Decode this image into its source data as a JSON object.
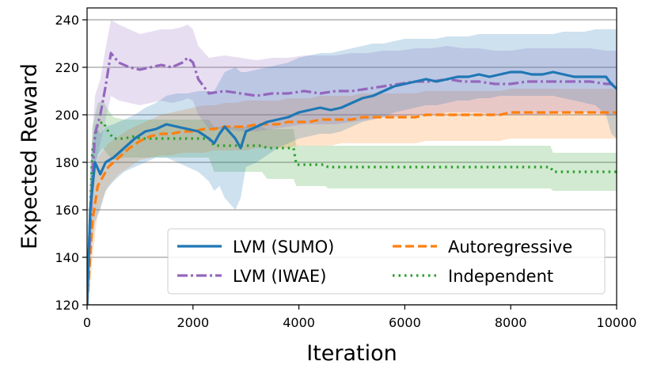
{
  "chart_data": {
    "type": "line",
    "title": "",
    "xlabel": "Iteration",
    "ylabel": "Expected Reward",
    "xlim": [
      0,
      10000
    ],
    "ylim": [
      120,
      245
    ],
    "xticks": [
      0,
      2000,
      4000,
      6000,
      8000,
      10000
    ],
    "yticks": [
      120,
      140,
      160,
      180,
      200,
      220,
      240
    ],
    "grid": "horizontal",
    "legend_position": "lower-right",
    "series": [
      {
        "name": "LVM (SUMO)",
        "color": "#1f77b4",
        "style": "solid",
        "x": [
          0,
          60,
          150,
          250,
          350,
          500,
          700,
          900,
          1100,
          1300,
          1500,
          1700,
          1900,
          2100,
          2300,
          2400,
          2500,
          2600,
          2800,
          2900,
          3000,
          3200,
          3400,
          3600,
          3800,
          4000,
          4200,
          4400,
          4600,
          4800,
          5000,
          5200,
          5400,
          5600,
          5800,
          6000,
          6200,
          6400,
          6600,
          6800,
          7000,
          7200,
          7400,
          7600,
          7800,
          8000,
          8200,
          8400,
          8600,
          8800,
          9000,
          9200,
          9400,
          9600,
          9800,
          9900,
          10000
        ],
        "y": [
          120,
          160,
          180,
          175,
          180,
          182,
          186,
          190,
          193,
          194,
          196,
          195,
          194,
          193,
          190,
          188,
          192,
          195,
          190,
          186,
          193,
          195,
          197,
          198,
          199,
          201,
          202,
          203,
          202,
          203,
          205,
          207,
          208,
          210,
          212,
          213,
          214,
          215,
          214,
          215,
          216,
          216,
          217,
          216,
          217,
          218,
          218,
          217,
          217,
          218,
          217,
          216,
          216,
          216,
          216,
          213,
          211
        ],
        "band_lower": [
          110,
          140,
          155,
          160,
          168,
          172,
          176,
          178,
          180,
          182,
          182,
          180,
          178,
          176,
          172,
          168,
          170,
          165,
          160,
          165,
          178,
          180,
          183,
          186,
          188,
          190,
          191,
          192,
          192,
          193,
          195,
          197,
          198,
          199,
          201,
          202,
          203,
          204,
          204,
          205,
          206,
          206,
          207,
          207,
          208,
          208,
          208,
          208,
          208,
          208,
          207,
          206,
          205,
          204,
          200,
          192,
          190
        ],
        "band_upper": [
          135,
          178,
          196,
          192,
          195,
          196,
          198,
          200,
          203,
          205,
          208,
          209,
          209,
          210,
          210,
          210,
          214,
          218,
          220,
          218,
          218,
          219,
          220,
          221,
          222,
          224,
          225,
          226,
          226,
          227,
          228,
          229,
          230,
          230,
          231,
          232,
          232,
          232,
          232,
          233,
          233,
          233,
          234,
          234,
          234,
          234,
          234,
          234,
          234,
          234,
          235,
          235,
          235,
          236,
          236,
          236,
          236
        ]
      },
      {
        "name": "LVM (IWAE)",
        "color": "#9467bd",
        "style": "dashdot",
        "x": [
          0,
          80,
          150,
          250,
          350,
          450,
          600,
          800,
          1000,
          1200,
          1400,
          1600,
          1800,
          1900,
          2000,
          2100,
          2300,
          2600,
          2900,
          3200,
          3500,
          3800,
          4100,
          4400,
          4700,
          5000,
          5300,
          5600,
          5900,
          6200,
          6500,
          6800,
          7100,
          7400,
          7700,
          8000,
          8300,
          8600,
          8900,
          9200,
          9500,
          9800,
          10000
        ],
        "y": [
          120,
          165,
          192,
          200,
          212,
          226,
          222,
          220,
          219,
          220,
          221,
          220,
          222,
          224,
          222,
          215,
          209,
          210,
          209,
          208,
          209,
          209,
          210,
          209,
          210,
          210,
          211,
          212,
          213,
          214,
          214,
          215,
          214,
          214,
          213,
          213,
          214,
          214,
          214,
          214,
          214,
          213,
          213
        ],
        "band_lower": [
          110,
          150,
          178,
          188,
          198,
          208,
          206,
          205,
          204,
          205,
          206,
          205,
          206,
          207,
          206,
          200,
          194,
          194,
          193,
          193,
          194,
          195,
          196,
          196,
          196,
          197,
          198,
          199,
          199,
          200,
          200,
          201,
          201,
          201,
          200,
          200,
          200,
          200,
          201,
          201,
          201,
          200,
          200
        ],
        "band_upper": [
          130,
          185,
          208,
          215,
          228,
          240,
          238,
          236,
          234,
          235,
          236,
          236,
          237,
          238,
          236,
          229,
          224,
          225,
          224,
          223,
          224,
          224,
          225,
          225,
          225,
          226,
          226,
          227,
          227,
          228,
          228,
          229,
          228,
          228,
          227,
          227,
          228,
          228,
          228,
          228,
          228,
          227,
          227
        ]
      },
      {
        "name": "Autoregressive",
        "color": "#ff7f0e",
        "style": "dashed",
        "x": [
          0,
          100,
          200,
          300,
          400,
          600,
          800,
          1000,
          1200,
          1400,
          1600,
          1800,
          2000,
          2200,
          2400,
          2600,
          2800,
          3000,
          3200,
          3400,
          3600,
          3800,
          4000,
          4200,
          4400,
          4600,
          4800,
          5000,
          5200,
          5400,
          5600,
          5800,
          6000,
          6200,
          6400,
          6600,
          6800,
          7000,
          7200,
          7400,
          7600,
          7800,
          8000,
          8200,
          8400,
          8600,
          8800,
          9000,
          9200,
          9400,
          9600,
          9800,
          10000
        ],
        "y": [
          120,
          155,
          170,
          174,
          178,
          182,
          186,
          189,
          191,
          192,
          192,
          193,
          193,
          194,
          194,
          195,
          195,
          195,
          196,
          196,
          196,
          197,
          197,
          197,
          198,
          198,
          198,
          198,
          199,
          199,
          199,
          199,
          199,
          199,
          200,
          200,
          200,
          200,
          200,
          200,
          200,
          200,
          201,
          201,
          201,
          201,
          201,
          201,
          201,
          201,
          201,
          201,
          201
        ],
        "band_lower": [
          110,
          140,
          158,
          165,
          170,
          175,
          178,
          181,
          182,
          183,
          183,
          184,
          184,
          184,
          185,
          185,
          185,
          185,
          186,
          186,
          186,
          186,
          187,
          187,
          187,
          187,
          188,
          188,
          188,
          188,
          188,
          188,
          188,
          188,
          189,
          189,
          189,
          189,
          189,
          189,
          189,
          189,
          190,
          190,
          190,
          190,
          190,
          190,
          190,
          190,
          190,
          190,
          190
        ],
        "band_upper": [
          130,
          170,
          182,
          185,
          188,
          191,
          194,
          196,
          198,
          200,
          201,
          202,
          203,
          204,
          204,
          205,
          205,
          206,
          206,
          206,
          206,
          207,
          207,
          207,
          208,
          208,
          208,
          208,
          209,
          209,
          209,
          209,
          209,
          209,
          210,
          210,
          210,
          210,
          210,
          210,
          210,
          210,
          211,
          211,
          211,
          211,
          211,
          211,
          211,
          211,
          211,
          211,
          211
        ]
      },
      {
        "name": "Independent",
        "color": "#2ca02c",
        "style": "dotted",
        "x": [
          0,
          100,
          200,
          300,
          400,
          500,
          700,
          900,
          1000,
          1500,
          2000,
          2300,
          2400,
          3000,
          3300,
          3400,
          3900,
          3950,
          4500,
          4550,
          8750,
          8800,
          10000
        ],
        "y": [
          120,
          185,
          196,
          197,
          193,
          190,
          190,
          191,
          190,
          190,
          190,
          190,
          187,
          187,
          187,
          186,
          186,
          179,
          179,
          178,
          178,
          176,
          176
        ],
        "band_lower": [
          110,
          175,
          183,
          186,
          183,
          181,
          182,
          182,
          182,
          182,
          182,
          182,
          176,
          176,
          176,
          173,
          173,
          170,
          170,
          169,
          169,
          168,
          168
        ],
        "band_upper": [
          135,
          195,
          205,
          206,
          202,
          199,
          198,
          198,
          198,
          198,
          198,
          198,
          195,
          195,
          195,
          194,
          194,
          187,
          187,
          187,
          187,
          184,
          184
        ]
      }
    ]
  }
}
